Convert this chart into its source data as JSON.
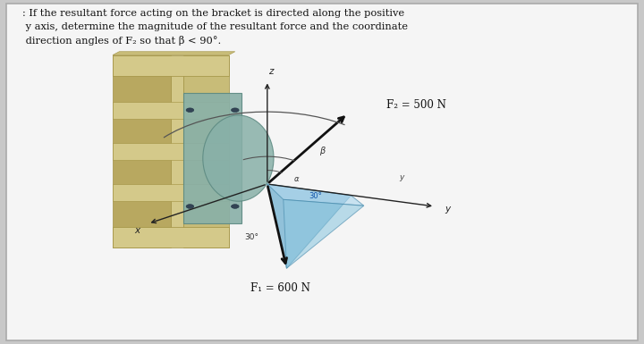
{
  "bg_color": "#c8c8c8",
  "panel_color": "#f5f5f5",
  "text_color": "#111111",
  "title_line1": ": If the resultant force acting on the bracket is directed along the positive",
  "title_line2": " y axis, determine the magnitude of the resultant force and the coordinate",
  "title_line3": " direction angles of F₂ so that β < 90°.",
  "f2_label": "F₂ = 500 N",
  "f1_label": "F₁ = 600 N",
  "bracket_front": "#d4c98a",
  "bracket_side": "#b8a860",
  "bracket_top": "#c8bc78",
  "bracket_dark": "#a09040",
  "plate_color": "#88b0a8",
  "plate_edge": "#5a8880",
  "blue1": "#90c8e0",
  "blue2": "#70b0d0",
  "blue3": "#b0d8ee",
  "figsize": [
    7.2,
    3.85
  ],
  "dpi": 100,
  "ox": 0.415,
  "oy": 0.465
}
